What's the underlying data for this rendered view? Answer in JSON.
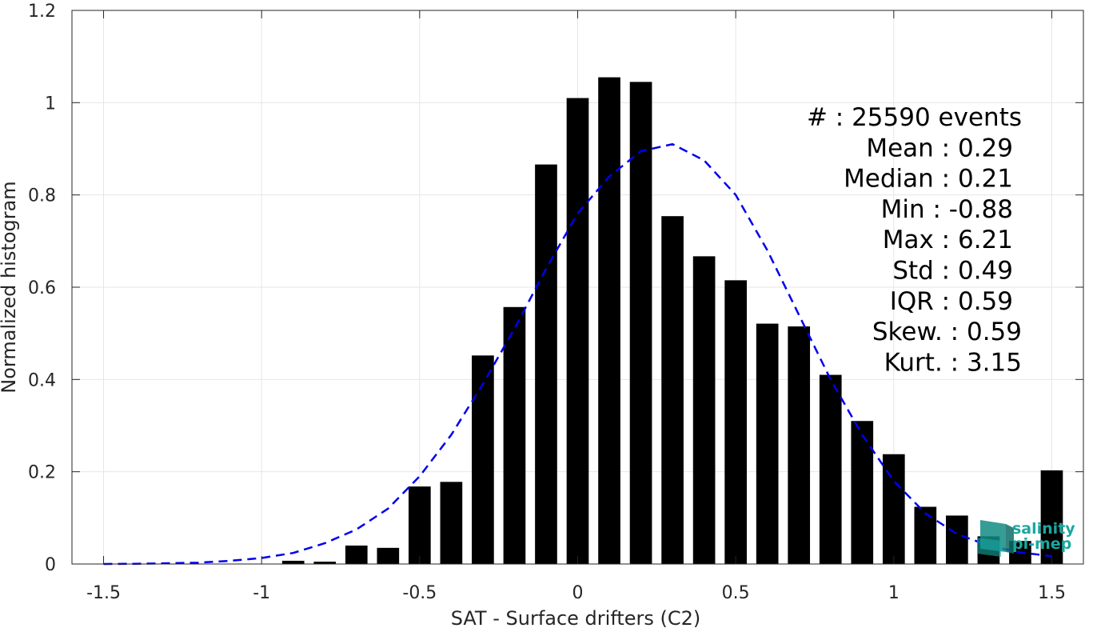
{
  "chart_data": {
    "type": "bar",
    "xlabel": "SAT - Surface drifters (C2)",
    "ylabel": "Normalized histogram",
    "xlim": [
      -1.6,
      1.6
    ],
    "ylim": [
      0,
      1.2
    ],
    "xticks": [
      -1.5,
      -1,
      -0.5,
      0,
      0.5,
      1,
      1.5
    ],
    "xtick_labels": [
      "-1.5",
      "-1",
      "-0.5",
      "0",
      "0.5",
      "1",
      "1.5"
    ],
    "yticks": [
      0,
      0.2,
      0.4,
      0.6,
      0.8,
      1,
      1.2
    ],
    "ytick_labels": [
      "0",
      "0.2",
      "0.4",
      "0.6",
      "0.8",
      "1",
      "1.2"
    ],
    "grid": true,
    "bar_color": "#000000",
    "fit_color": "#0000ee",
    "bars": {
      "x": [
        -0.9,
        -0.8,
        -0.7,
        -0.6,
        -0.5,
        -0.4,
        -0.3,
        -0.2,
        -0.1,
        0.0,
        0.1,
        0.2,
        0.3,
        0.4,
        0.5,
        0.6,
        0.7,
        0.8,
        0.9,
        1.0,
        1.1,
        1.2,
        1.3,
        1.4,
        1.5
      ],
      "values": [
        0.007,
        0.005,
        0.04,
        0.035,
        0.168,
        0.178,
        0.452,
        0.557,
        0.866,
        1.01,
        1.055,
        1.045,
        0.754,
        0.667,
        0.615,
        0.521,
        0.515,
        0.41,
        0.31,
        0.238,
        0.124,
        0.105,
        0.06,
        0.05,
        0.203
      ]
    },
    "fit_curve": {
      "style": "dashed",
      "x": [
        -1.5,
        -1.4,
        -1.3,
        -1.2,
        -1.1,
        -1.0,
        -0.9,
        -0.8,
        -0.7,
        -0.6,
        -0.5,
        -0.4,
        -0.3,
        -0.2,
        -0.1,
        0.0,
        0.1,
        0.2,
        0.3,
        0.4,
        0.5,
        0.6,
        0.7,
        0.8,
        0.9,
        1.0,
        1.1,
        1.2,
        1.3,
        1.4,
        1.5
      ],
      "y": [
        0.0,
        0.0005,
        0.0015,
        0.003,
        0.007,
        0.013,
        0.024,
        0.045,
        0.075,
        0.12,
        0.19,
        0.28,
        0.39,
        0.51,
        0.64,
        0.76,
        0.84,
        0.895,
        0.91,
        0.875,
        0.8,
        0.68,
        0.54,
        0.4,
        0.28,
        0.18,
        0.11,
        0.065,
        0.04,
        0.025,
        0.017
      ]
    },
    "stats": [
      {
        "text": "#  : 25590 events",
        "row": 0
      },
      {
        "text": "Mean : 0.29",
        "row": 1
      },
      {
        "text": "Median : 0.21",
        "row": 2
      },
      {
        "text": "Min : -0.88",
        "row": 3
      },
      {
        "text": "Max : 6.21",
        "row": 4
      },
      {
        "text": "Std : 0.49",
        "row": 5
      },
      {
        "text": "IQR : 0.59",
        "row": 6
      },
      {
        "text": "Skew. : 0.59",
        "row": 7
      },
      {
        "text": "Kurt. : 3.15",
        "row": 8
      }
    ]
  },
  "logo": {
    "line1": "salinity",
    "line2": "pi-mep",
    "color": "#1aa8a0"
  }
}
